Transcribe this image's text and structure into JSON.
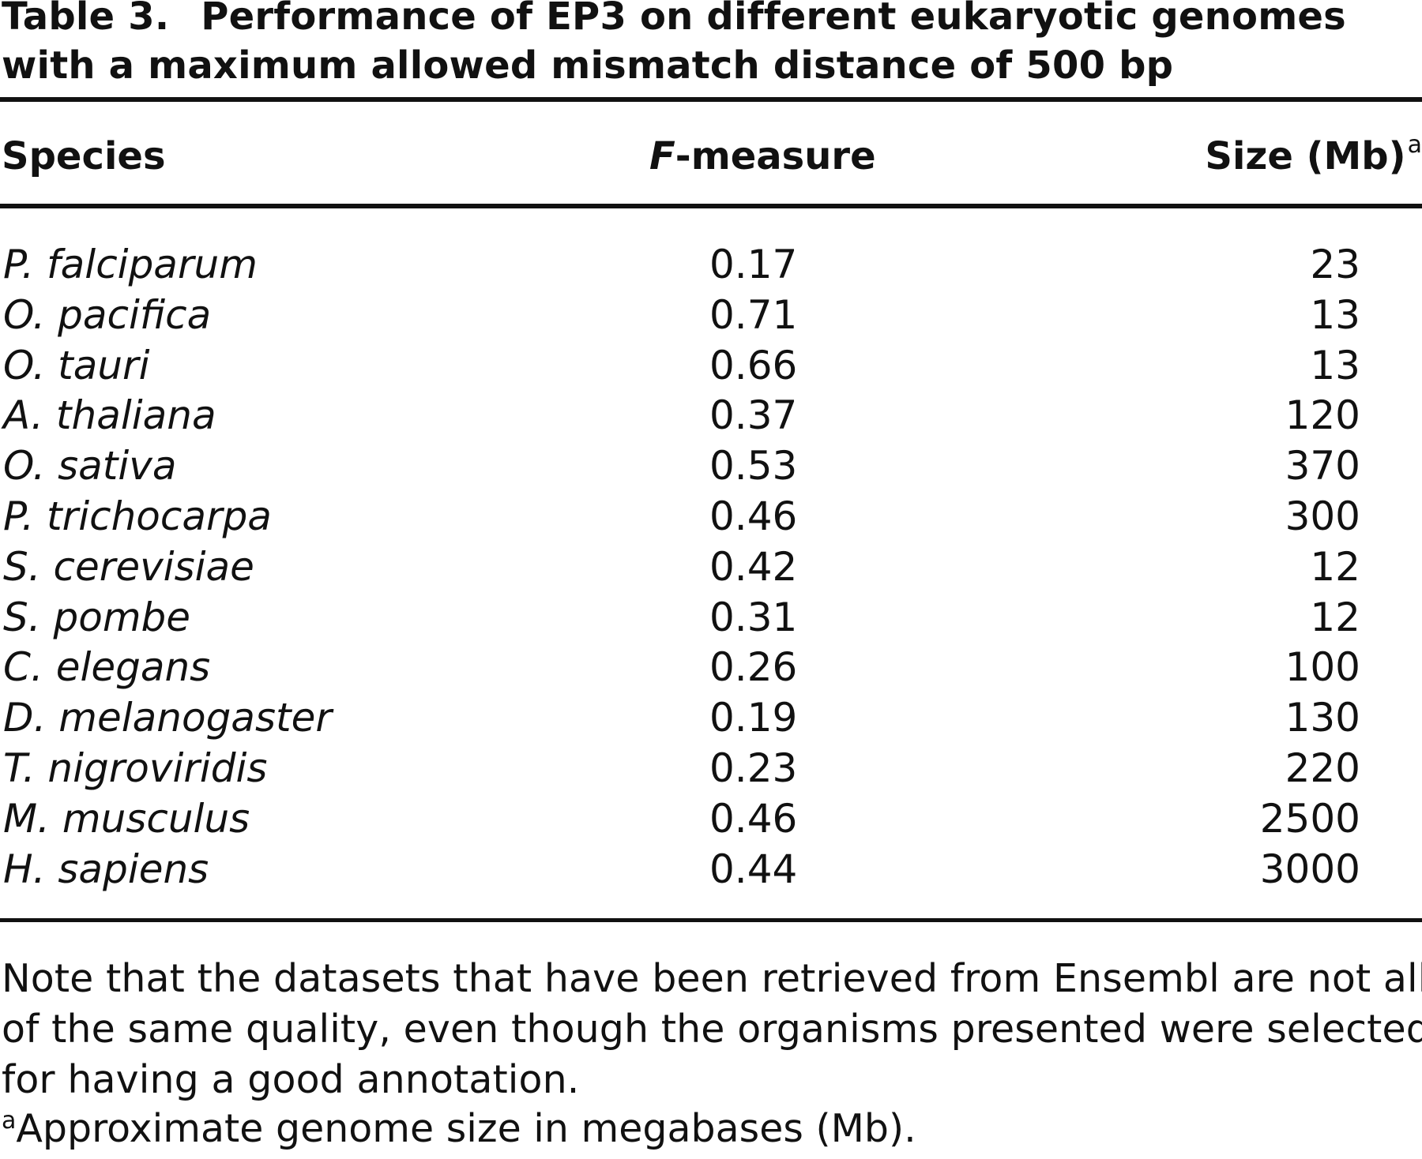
{
  "table": {
    "label": "Table 3.",
    "title_line1": "Performance of EP3 on different eukaryotic genomes",
    "title_line2": "with a maximum allowed mismatch distance of 500 bp",
    "headers": {
      "species": "Species",
      "fmeasure_italic": "F",
      "fmeasure_rest": "-measure",
      "size": "Size (Mb)",
      "size_sup": "a"
    },
    "rows": [
      {
        "species": "P. falciparum",
        "fmeasure": "0.17",
        "size": "23"
      },
      {
        "species": "O. pacifica",
        "fmeasure": "0.71",
        "size": "13"
      },
      {
        "species": "O. tauri",
        "fmeasure": "0.66",
        "size": "13"
      },
      {
        "species": "A. thaliana",
        "fmeasure": "0.37",
        "size": "120"
      },
      {
        "species": "O. sativa",
        "fmeasure": "0.53",
        "size": "370"
      },
      {
        "species": "P. trichocarpa",
        "fmeasure": "0.46",
        "size": "300"
      },
      {
        "species": "S. cerevisiae",
        "fmeasure": "0.42",
        "size": "12"
      },
      {
        "species": "S. pombe",
        "fmeasure": "0.31",
        "size": "12"
      },
      {
        "species": "C. elegans",
        "fmeasure": "0.26",
        "size": "100"
      },
      {
        "species": "D. melanogaster",
        "fmeasure": "0.19",
        "size": "130"
      },
      {
        "species": "T. nigroviridis",
        "fmeasure": "0.23",
        "size": "220"
      },
      {
        "species": "M. musculus",
        "fmeasure": "0.46",
        "size": "2500"
      },
      {
        "species": "H. sapiens",
        "fmeasure": "0.44",
        "size": "3000"
      }
    ],
    "note_lines": [
      "Note that the datasets that have been retrieved from Ensembl are not all",
      "of the same quality, even though the organisms presented were selected",
      "for having a good annotation."
    ],
    "footnote_marker": "a",
    "footnote_text": "Approximate genome size in megabases (Mb)."
  }
}
